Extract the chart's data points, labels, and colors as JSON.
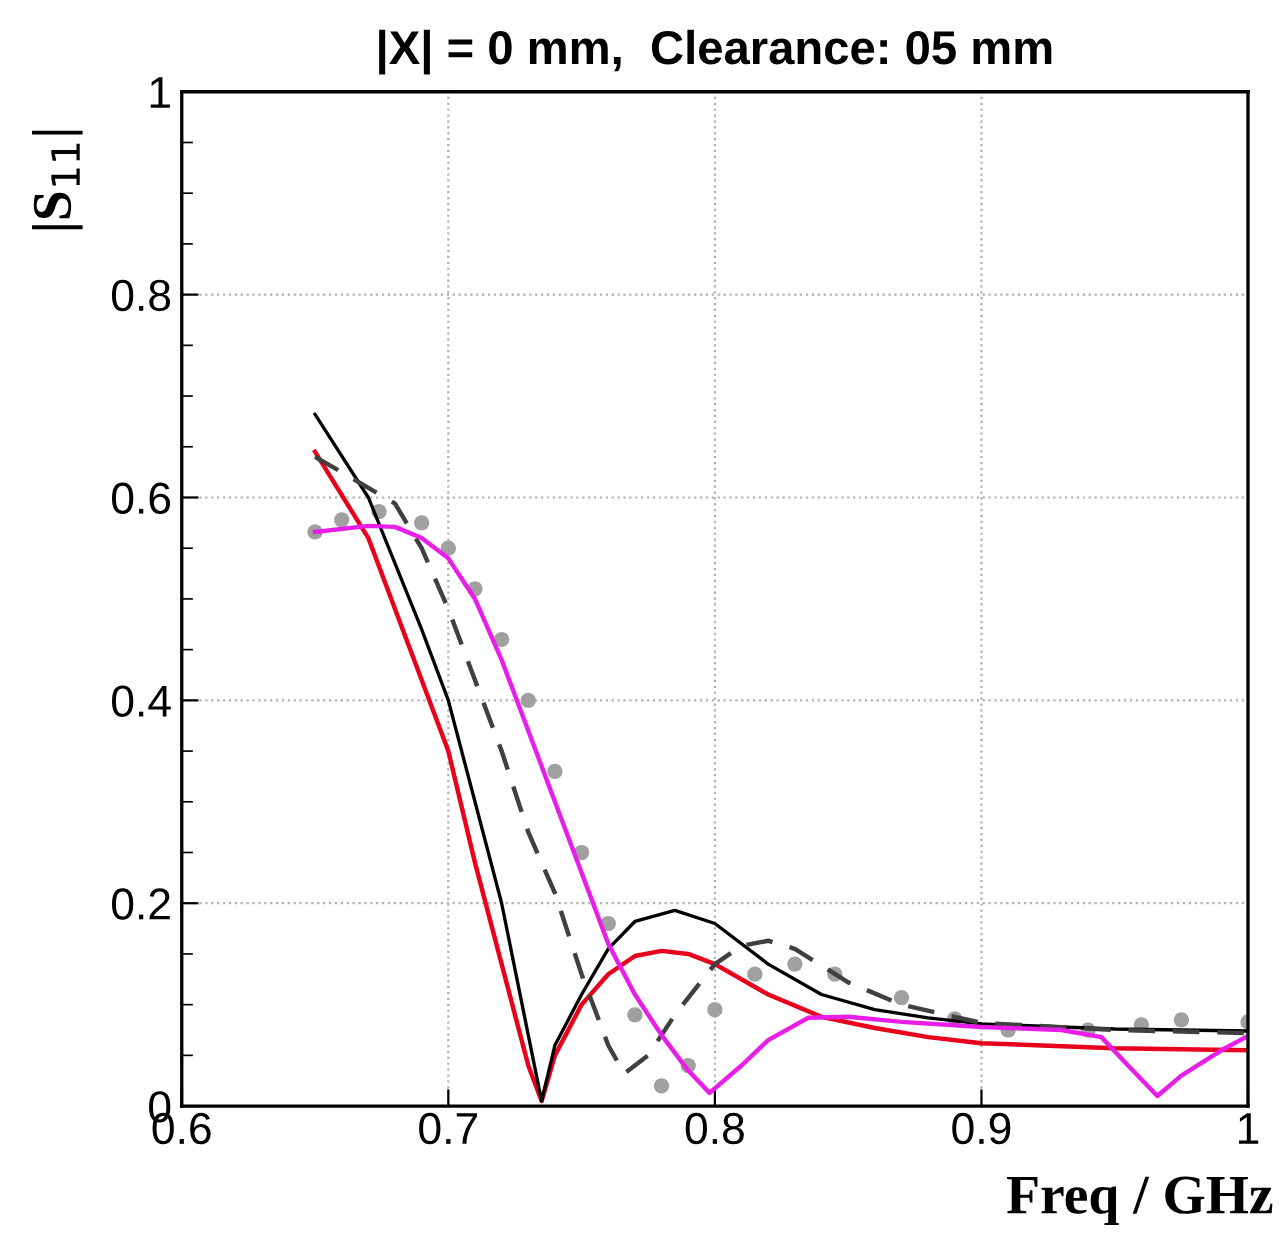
{
  "chart_data": {
    "type": "line",
    "title": "|X| = 0 mm,  Clearance: 05 mm",
    "xlabel": "Freq / GHz",
    "ylabel": "|S$_{11}$|",
    "xlim": [
      0.6,
      1.0
    ],
    "xticks": [
      {
        "value": 0.6,
        "label": "0.6"
      },
      {
        "value": 0.7,
        "label": "0.7"
      },
      {
        "value": 0.8,
        "label": "0.8"
      },
      {
        "value": 0.9,
        "label": "0.9"
      },
      {
        "value": 1.0,
        "label": "1"
      }
    ],
    "ylim": [
      0,
      1
    ],
    "yticks": [
      0,
      0.2,
      0.4,
      0.6,
      0.8,
      1
    ],
    "grid": true,
    "series": [
      {
        "color": "#e8001c",
        "line_style": "solid",
        "x": [
          0.65,
          0.67,
          0.69,
          0.7,
          0.71,
          0.72,
          0.73,
          0.735,
          0.74,
          0.75,
          0.76,
          0.77,
          0.78,
          0.79,
          0.8,
          0.82,
          0.84,
          0.86,
          0.88,
          0.9,
          0.95,
          1.0
        ],
        "values": [
          0.645,
          0.56,
          0.42,
          0.35,
          0.24,
          0.14,
          0.04,
          0.005,
          0.05,
          0.1,
          0.13,
          0.148,
          0.153,
          0.15,
          0.14,
          0.11,
          0.088,
          0.077,
          0.068,
          0.062,
          0.057,
          0.055
        ]
      },
      {
        "color": "#000000",
        "line_style": "solid",
        "x": [
          0.65,
          0.67,
          0.69,
          0.7,
          0.71,
          0.72,
          0.73,
          0.735,
          0.74,
          0.75,
          0.76,
          0.77,
          0.785,
          0.8,
          0.82,
          0.84,
          0.86,
          0.88,
          0.9,
          0.95,
          1.0
        ],
        "values": [
          0.682,
          0.6,
          0.47,
          0.4,
          0.3,
          0.2,
          0.07,
          0.005,
          0.06,
          0.11,
          0.155,
          0.182,
          0.193,
          0.18,
          0.14,
          0.11,
          0.095,
          0.087,
          0.081,
          0.076,
          0.074
        ]
      },
      {
        "color": "#404040",
        "line_style": "dashed",
        "x": [
          0.65,
          0.66,
          0.68,
          0.69,
          0.7,
          0.71,
          0.72,
          0.73,
          0.74,
          0.75,
          0.76,
          0.766,
          0.775,
          0.785,
          0.8,
          0.81,
          0.82,
          0.83,
          0.85,
          0.87,
          0.9,
          0.95,
          1.0
        ],
        "values": [
          0.64,
          0.625,
          0.594,
          0.55,
          0.49,
          0.42,
          0.35,
          0.27,
          0.21,
          0.13,
          0.06,
          0.032,
          0.05,
          0.09,
          0.14,
          0.158,
          0.163,
          0.155,
          0.122,
          0.1,
          0.082,
          0.075,
          0.072
        ]
      },
      {
        "color": "#a0a0a0",
        "type": "scatter",
        "marker": "circle",
        "x": [
          0.65,
          0.66,
          0.674,
          0.69,
          0.7,
          0.71,
          0.72,
          0.73,
          0.74,
          0.75,
          0.76,
          0.77,
          0.78,
          0.79,
          0.8,
          0.815,
          0.83,
          0.845,
          0.87,
          0.89,
          0.91,
          0.94,
          0.96,
          0.975,
          1.0
        ],
        "values": [
          0.566,
          0.578,
          0.586,
          0.575,
          0.55,
          0.51,
          0.46,
          0.4,
          0.33,
          0.25,
          0.18,
          0.09,
          0.02,
          0.04,
          0.095,
          0.13,
          0.14,
          0.13,
          0.107,
          0.086,
          0.075,
          0.075,
          0.08,
          0.085,
          0.083
        ]
      },
      {
        "color": "#e81ee8",
        "line_style": "solid",
        "x": [
          0.65,
          0.67,
          0.68,
          0.69,
          0.7,
          0.71,
          0.72,
          0.73,
          0.74,
          0.75,
          0.76,
          0.77,
          0.78,
          0.79,
          0.798,
          0.81,
          0.82,
          0.835,
          0.85,
          0.87,
          0.9,
          0.93,
          0.945,
          0.955,
          0.966,
          0.975,
          0.99,
          1.0
        ],
        "values": [
          0.566,
          0.572,
          0.571,
          0.56,
          0.54,
          0.5,
          0.44,
          0.37,
          0.3,
          0.23,
          0.16,
          0.11,
          0.07,
          0.035,
          0.013,
          0.04,
          0.065,
          0.087,
          0.088,
          0.083,
          0.078,
          0.075,
          0.068,
          0.04,
          0.01,
          0.03,
          0.055,
          0.069
        ]
      }
    ]
  }
}
